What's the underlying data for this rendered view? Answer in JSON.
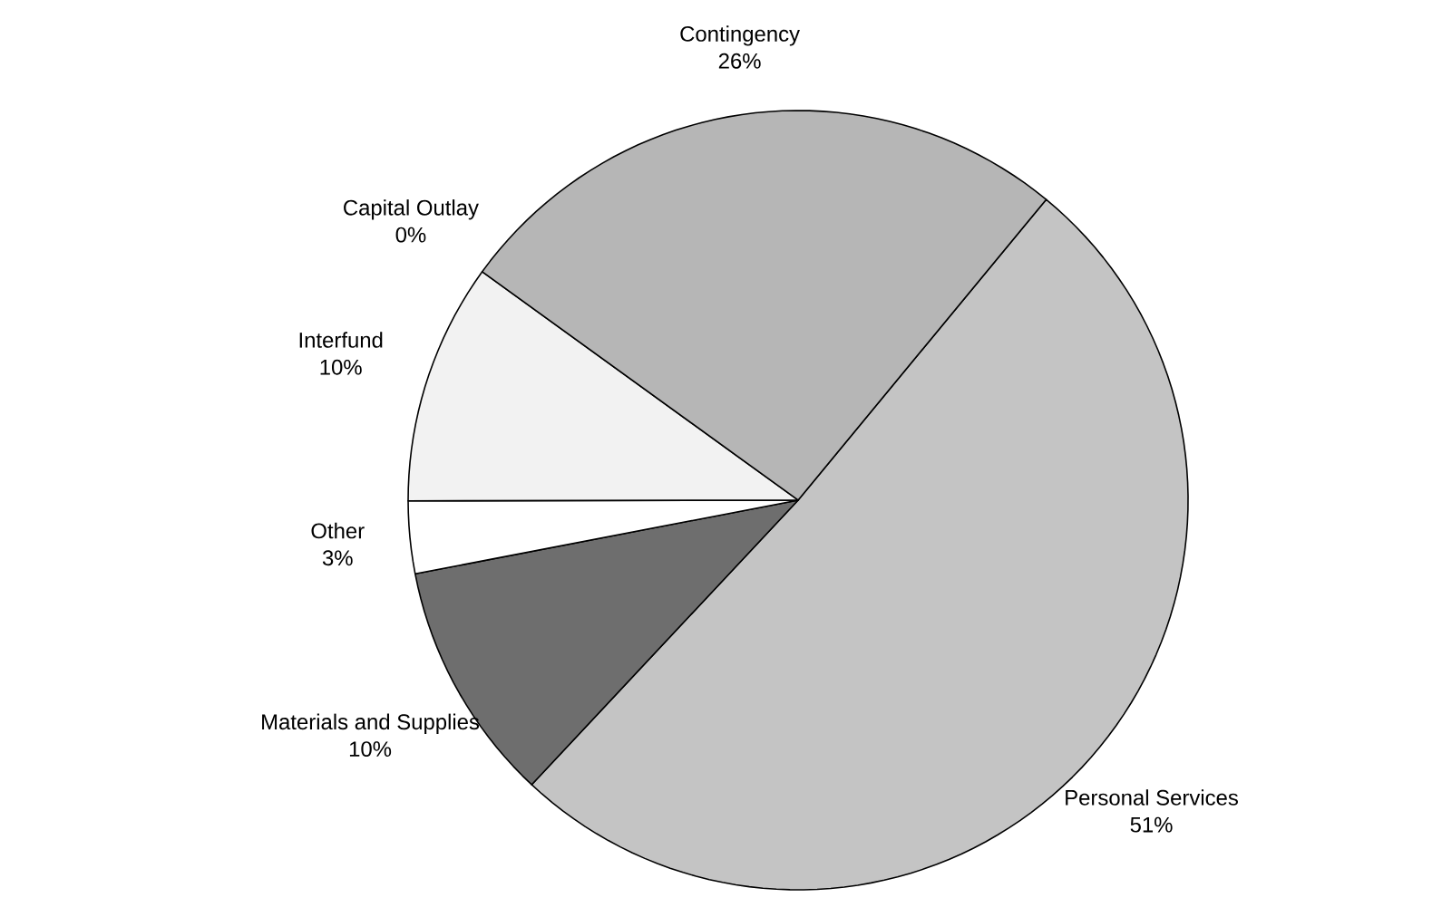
{
  "chart_data": {
    "type": "pie",
    "categories": [
      "Personal Services",
      "Materials and Supplies",
      "Other",
      "Interfund",
      "Capital Outlay",
      "Contingency"
    ],
    "values": [
      51,
      10,
      3,
      10,
      0,
      26
    ],
    "value_labels": [
      "51%",
      "10%",
      "3%",
      "10%",
      "0%",
      "26%"
    ],
    "colors": [
      "#c4c4c4",
      "#6e6e6e",
      "#ffffff",
      "#f2f2f2",
      "#5a5a5a",
      "#b6b6b6"
    ]
  }
}
